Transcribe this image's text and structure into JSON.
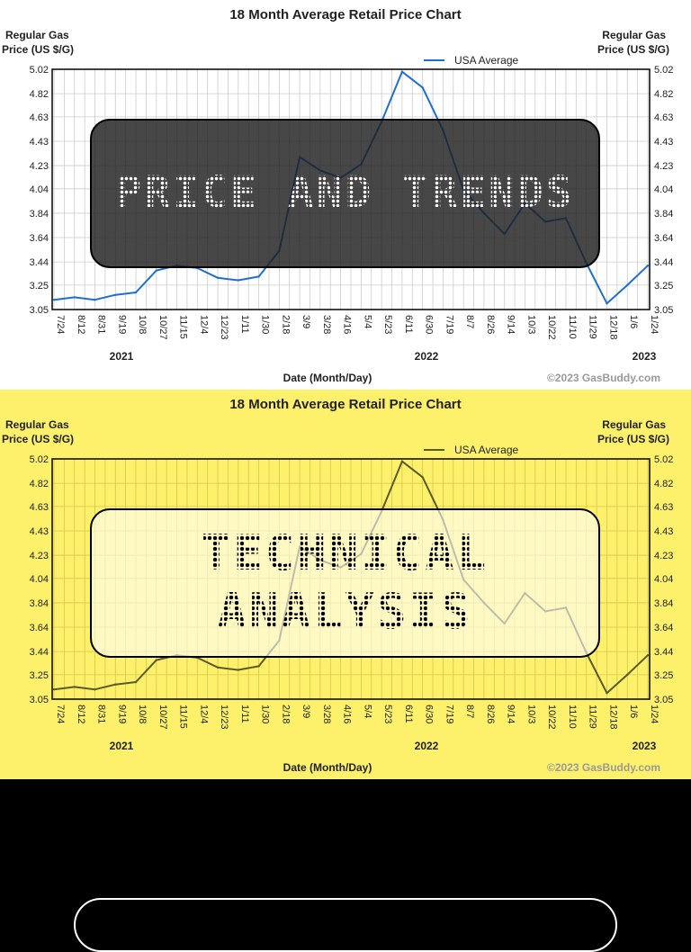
{
  "chart_data": [
    {
      "type": "line",
      "title": "18 Month Average Retail Price Chart",
      "ylabel_left": "Regular Gas Price (US $/G)",
      "ylabel_right": "Regular Gas Price (US $/G)",
      "xlabel": "Date (Month/Day)",
      "credit": "©2023 GasBuddy.com",
      "ylim": [
        3.05,
        5.02
      ],
      "y_ticks": [
        "5.02",
        "4.82",
        "4.63",
        "4.43",
        "4.23",
        "4.04",
        "3.84",
        "3.64",
        "3.44",
        "3.25",
        "3.05"
      ],
      "x_ticks": [
        "7/24",
        "8/12",
        "8/31",
        "9/19",
        "10/8",
        "10/27",
        "11/15",
        "12/4",
        "12/23",
        "1/11",
        "1/30",
        "2/18",
        "3/9",
        "3/28",
        "4/16",
        "5/4",
        "5/23",
        "6/11",
        "6/30",
        "7/19",
        "8/7",
        "8/26",
        "9/14",
        "10/3",
        "10/22",
        "11/10",
        "11/29",
        "12/18",
        "1/6",
        "1/24"
      ],
      "years": [
        "2021",
        "2022",
        "2023"
      ],
      "legend": "top-right",
      "grid": true,
      "series": [
        {
          "name": "USA Average",
          "color": "#1f6fd0",
          "x": [
            "7/24",
            "8/12",
            "8/31",
            "9/19",
            "10/8",
            "10/27",
            "11/15",
            "12/4",
            "12/23",
            "1/11",
            "1/30",
            "2/18",
            "3/9",
            "3/28",
            "4/16",
            "5/4",
            "5/23",
            "6/11",
            "6/30",
            "7/19",
            "8/7",
            "8/26",
            "9/14",
            "10/3",
            "10/22",
            "11/10",
            "11/29",
            "12/18",
            "1/6",
            "1/24"
          ],
          "values": [
            3.13,
            3.15,
            3.13,
            3.17,
            3.19,
            3.37,
            3.41,
            3.39,
            3.31,
            3.29,
            3.32,
            3.53,
            4.3,
            4.19,
            4.13,
            4.24,
            4.59,
            5.0,
            4.87,
            4.52,
            4.03,
            3.84,
            3.67,
            3.92,
            3.77,
            3.8,
            3.43,
            3.1,
            3.25,
            3.41
          ]
        }
      ]
    },
    {
      "type": "line",
      "title": "18 Month Average Retail Price Chart",
      "ylabel_left": "Regular Gas Price (US $/G)",
      "ylabel_right": "Regular Gas Price (US $/G)",
      "xlabel": "Date (Month/Day)",
      "credit": "©2023 GasBuddy.com",
      "ylim": [
        3.05,
        5.02
      ],
      "y_ticks": [
        "5.02",
        "4.82",
        "4.63",
        "4.43",
        "4.23",
        "4.04",
        "3.84",
        "3.64",
        "3.44",
        "3.25",
        "3.05"
      ],
      "x_ticks": [
        "7/24",
        "8/12",
        "8/31",
        "9/19",
        "10/8",
        "10/27",
        "11/15",
        "12/4",
        "12/23",
        "1/11",
        "1/30",
        "2/18",
        "3/9",
        "3/28",
        "4/16",
        "5/4",
        "5/23",
        "6/11",
        "6/30",
        "7/19",
        "8/7",
        "8/26",
        "9/14",
        "10/3",
        "10/22",
        "11/10",
        "11/29",
        "12/18",
        "1/6",
        "1/24"
      ],
      "years": [
        "2021",
        "2022",
        "2023"
      ],
      "legend": "top-right",
      "grid": true,
      "series": [
        {
          "name": "USA Average",
          "color": "#5a5a2a",
          "x": [
            "7/24",
            "8/12",
            "8/31",
            "9/19",
            "10/8",
            "10/27",
            "11/15",
            "12/4",
            "12/23",
            "1/11",
            "1/30",
            "2/18",
            "3/9",
            "3/28",
            "4/16",
            "5/4",
            "5/23",
            "6/11",
            "6/30",
            "7/19",
            "8/7",
            "8/26",
            "9/14",
            "10/3",
            "10/22",
            "11/10",
            "11/29",
            "12/18",
            "1/6",
            "1/24"
          ],
          "values": [
            3.13,
            3.15,
            3.13,
            3.17,
            3.19,
            3.37,
            3.41,
            3.39,
            3.31,
            3.29,
            3.32,
            3.53,
            4.3,
            4.19,
            4.13,
            4.24,
            4.59,
            5.0,
            4.87,
            4.52,
            4.03,
            3.84,
            3.67,
            3.92,
            3.77,
            3.8,
            3.43,
            3.1,
            3.25,
            3.41
          ]
        }
      ]
    }
  ],
  "overlays": {
    "top": "PRICE AND TRENDS",
    "bottom_line1": "TECHNICAL",
    "bottom_line2": "ANALYSIS"
  },
  "colors": {
    "top_bg": "#ffffff",
    "bottom_bg": "#fdf06a",
    "page_bg": "#000000",
    "grid_top": "#cccccc",
    "grid_bottom": "#d8c64a"
  }
}
